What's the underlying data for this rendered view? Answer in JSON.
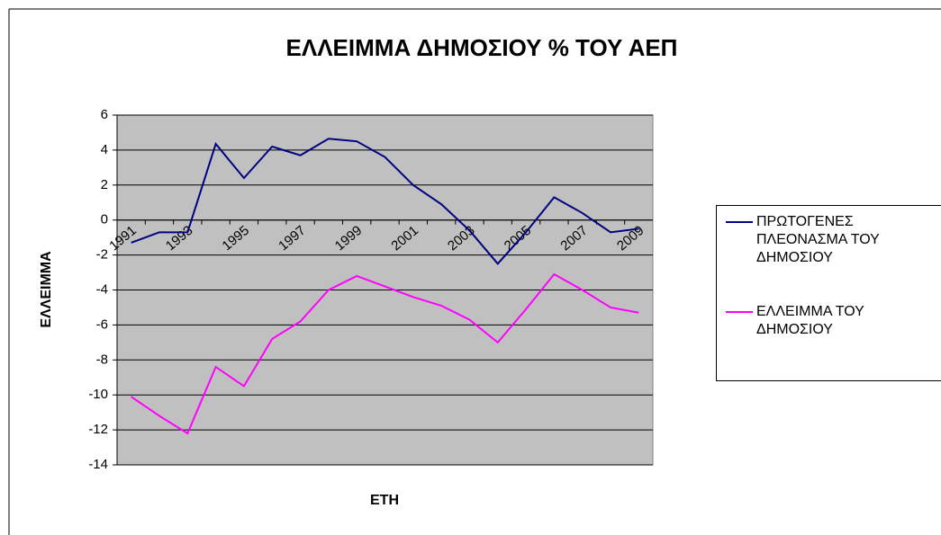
{
  "chart_data": {
    "type": "line",
    "title": "ΕΛΛΕΙΜΜΑ ΔΗΜΟΣΙΟΥ % ΤΟΥ ΑΕΠ",
    "y_label": "ΕΛΛΕΙΜΜΑ",
    "x_label": "ΕΤΗ",
    "categories": [
      "1991",
      null,
      "1993",
      null,
      "1995",
      null,
      "1997",
      null,
      "1999",
      null,
      "2001",
      null,
      "2003",
      null,
      "2005",
      null,
      "2007",
      null,
      "2009"
    ],
    "series": [
      {
        "name": "ΠΡΩΤΟΓΕΝΕΣ ΠΛΕΟΝΑΣΜΑ ΤΟΥ ΔΗΜΟΣΙΟΥ",
        "color": "#000080",
        "values": [
          -1.3,
          -0.7,
          -0.7,
          4.35,
          2.4,
          4.2,
          3.7,
          4.65,
          4.5,
          3.6,
          2.0,
          0.9,
          -0.6,
          -2.5,
          -0.7,
          1.3,
          0.4,
          -0.7,
          -0.5
        ]
      },
      {
        "name": "ΕΛΛΕΙΜΜΑ ΤΟΥ ΔΗΜΟΣΙΟΥ",
        "color": "#ff00ff",
        "values": [
          -10.1,
          -11.2,
          -12.2,
          -8.4,
          -9.5,
          -6.8,
          -5.8,
          -4.0,
          -3.2,
          -3.8,
          -4.4,
          -4.9,
          -5.7,
          -7.0,
          -5.1,
          -3.1,
          -4.0,
          -5.0,
          -5.3
        ]
      }
    ],
    "ylim": [
      -14,
      6
    ],
    "yticks": [
      -14,
      -12,
      -10,
      -8,
      -6,
      -4,
      -2,
      0,
      2,
      4,
      6
    ],
    "grid": true,
    "plot_background": "#c0c0c0",
    "legend": "right"
  }
}
